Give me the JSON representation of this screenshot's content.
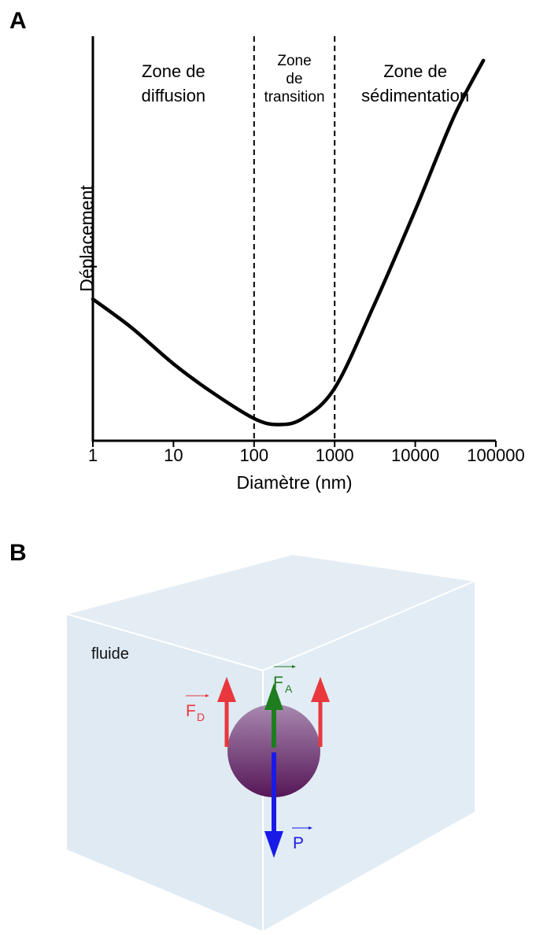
{
  "panels": {
    "a_label": "A",
    "b_label": "B"
  },
  "chart_data": {
    "type": "line",
    "xlabel": "Diamètre (nm)",
    "ylabel": "Déplacement",
    "x_scale": "log",
    "xlim": [
      1,
      100000
    ],
    "x_ticks": [
      "1",
      "10",
      "100",
      "1000",
      "10000",
      "100000"
    ],
    "y_ticks": [],
    "grid": false,
    "zone_boundaries": [
      100,
      1000
    ],
    "zones": [
      {
        "lines": [
          "Zone de",
          "diffusion"
        ]
      },
      {
        "lines": [
          "Zone",
          "de",
          "transition"
        ]
      },
      {
        "lines": [
          "Zone de",
          "sédimentation"
        ]
      }
    ],
    "series": [
      {
        "x": [
          1,
          3,
          10,
          30,
          100,
          200,
          400,
          1000,
          3000,
          10000,
          30000,
          70000
        ],
        "y": [
          0.35,
          0.28,
          0.19,
          0.12,
          0.055,
          0.04,
          0.055,
          0.13,
          0.33,
          0.57,
          0.8,
          0.94
        ]
      }
    ]
  },
  "diagram": {
    "medium_label": "fluide",
    "forces": {
      "drag": {
        "letter": "F",
        "sub": "D",
        "color": "#e8383d"
      },
      "buoyancy": {
        "letter": "F",
        "sub": "A",
        "color": "#1e7d1e"
      },
      "weight": {
        "letter": "P",
        "color": "#1a1ae6"
      }
    },
    "colors": {
      "box_fill": "#dde9f2",
      "sphere_light": "#9c7aa8",
      "sphere_dark": "#5a1a5e"
    }
  }
}
